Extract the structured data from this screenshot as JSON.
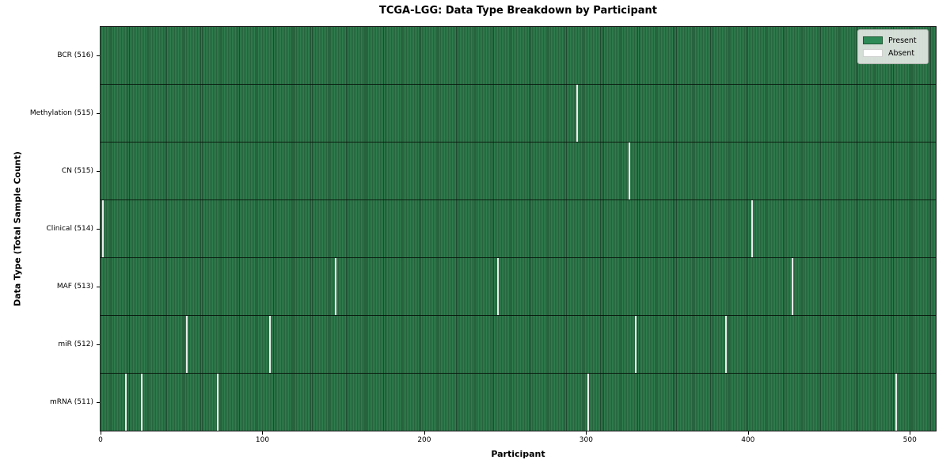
{
  "chart_data": {
    "type": "heatmap",
    "title": "TCGA-LGG: Data Type Breakdown by Participant",
    "xlabel": "Participant",
    "ylabel": "Data Type (Total Sample Count)",
    "legend_entries": [
      "Present",
      "Absent"
    ],
    "legend_position": "upper right",
    "x_ticks": [
      0,
      100,
      200,
      300,
      400,
      500
    ],
    "xlim": [
      -0.5,
      516.5
    ],
    "total_participants": 516,
    "colors": {
      "present": "#2e8b57",
      "present_stripe_dark": "#1f4a2f",
      "absent": "#ffffff"
    },
    "rows": [
      {
        "short": "bcr",
        "label": "BCR (516)",
        "data_type": "BCR",
        "present_count": 516,
        "absent_participants": []
      },
      {
        "short": "methylation",
        "label": "Methylation (515)",
        "data_type": "Methylation",
        "present_count": 515,
        "absent_participants": [
          294
        ]
      },
      {
        "short": "cn",
        "label": "CN (515)",
        "data_type": "CN",
        "present_count": 515,
        "absent_participants": [
          326
        ]
      },
      {
        "short": "clinical",
        "label": "Clinical (514)",
        "data_type": "Clinical",
        "present_count": 514,
        "absent_participants": [
          1,
          402
        ]
      },
      {
        "short": "maf",
        "label": "MAF (513)",
        "data_type": "MAF",
        "present_count": 513,
        "absent_participants": [
          145,
          245,
          427
        ]
      },
      {
        "short": "mir",
        "label": "miR (512)",
        "data_type": "miR",
        "present_count": 512,
        "absent_participants": [
          53,
          104,
          330,
          386
        ]
      },
      {
        "short": "mrna",
        "label": "mRNA (511)",
        "data_type": "mRNA",
        "present_count": 511,
        "absent_participants": [
          15,
          25,
          72,
          301,
          491
        ]
      }
    ]
  }
}
